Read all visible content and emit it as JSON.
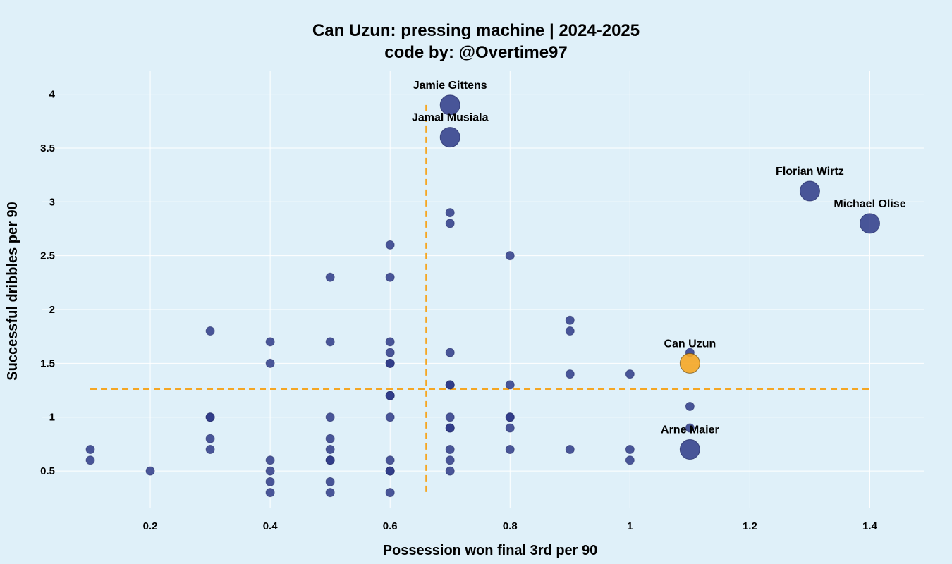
{
  "chart_data": {
    "type": "scatter",
    "title": "Can Uzun: pressing machine | 2024-2025",
    "subtitle": "code by: @Overtime97",
    "xlabel": "Possession won final 3rd per 90",
    "ylabel": "Successful dribbles per 90",
    "xlim": [
      0.02,
      1.49
    ],
    "ylim": [
      0.16,
      4.22
    ],
    "xticks": [
      "0.2",
      "0.4",
      "0.6",
      "0.8",
      "1",
      "1.2",
      "1.4"
    ],
    "yticks": [
      "0.5",
      "1",
      "1.5",
      "2",
      "2.5",
      "3",
      "3.5",
      "4"
    ],
    "grid": true,
    "reference_lines": {
      "x": 0.66,
      "y": 1.26
    },
    "colors": {
      "background": "#dff0f9",
      "point": "#2e3a87",
      "highlight": "#f5a623",
      "reference": "#f5a623"
    },
    "points": [
      {
        "x": 0.1,
        "y": 0.7
      },
      {
        "x": 0.1,
        "y": 0.6
      },
      {
        "x": 0.2,
        "y": 0.5
      },
      {
        "x": 0.3,
        "y": 1.8
      },
      {
        "x": 0.3,
        "y": 1.0
      },
      {
        "x": 0.3,
        "y": 1.0
      },
      {
        "x": 0.3,
        "y": 0.8
      },
      {
        "x": 0.3,
        "y": 0.7
      },
      {
        "x": 0.4,
        "y": 1.7
      },
      {
        "x": 0.4,
        "y": 1.5
      },
      {
        "x": 0.4,
        "y": 0.6
      },
      {
        "x": 0.4,
        "y": 0.5
      },
      {
        "x": 0.4,
        "y": 0.4
      },
      {
        "x": 0.4,
        "y": 0.3
      },
      {
        "x": 0.5,
        "y": 2.3
      },
      {
        "x": 0.5,
        "y": 1.7
      },
      {
        "x": 0.5,
        "y": 1.0
      },
      {
        "x": 0.5,
        "y": 0.8
      },
      {
        "x": 0.5,
        "y": 0.7
      },
      {
        "x": 0.5,
        "y": 0.6
      },
      {
        "x": 0.5,
        "y": 0.6
      },
      {
        "x": 0.5,
        "y": 0.4
      },
      {
        "x": 0.5,
        "y": 0.3
      },
      {
        "x": 0.6,
        "y": 2.6
      },
      {
        "x": 0.6,
        "y": 2.3
      },
      {
        "x": 0.6,
        "y": 1.7
      },
      {
        "x": 0.6,
        "y": 1.6
      },
      {
        "x": 0.6,
        "y": 1.5
      },
      {
        "x": 0.6,
        "y": 1.5
      },
      {
        "x": 0.6,
        "y": 1.2
      },
      {
        "x": 0.6,
        "y": 1.2
      },
      {
        "x": 0.6,
        "y": 1.0
      },
      {
        "x": 0.6,
        "y": 0.6
      },
      {
        "x": 0.6,
        "y": 0.5
      },
      {
        "x": 0.6,
        "y": 0.5
      },
      {
        "x": 0.6,
        "y": 0.3
      },
      {
        "x": 0.7,
        "y": 2.9
      },
      {
        "x": 0.7,
        "y": 2.8
      },
      {
        "x": 0.7,
        "y": 1.6
      },
      {
        "x": 0.7,
        "y": 1.3
      },
      {
        "x": 0.7,
        "y": 1.3
      },
      {
        "x": 0.7,
        "y": 1.0
      },
      {
        "x": 0.7,
        "y": 0.9
      },
      {
        "x": 0.7,
        "y": 0.9
      },
      {
        "x": 0.7,
        "y": 0.7
      },
      {
        "x": 0.7,
        "y": 0.6
      },
      {
        "x": 0.7,
        "y": 0.5
      },
      {
        "x": 0.8,
        "y": 2.5
      },
      {
        "x": 0.8,
        "y": 1.3
      },
      {
        "x": 0.8,
        "y": 1.0
      },
      {
        "x": 0.8,
        "y": 1.0
      },
      {
        "x": 0.8,
        "y": 0.9
      },
      {
        "x": 0.8,
        "y": 0.7
      },
      {
        "x": 0.9,
        "y": 1.9
      },
      {
        "x": 0.9,
        "y": 1.8
      },
      {
        "x": 0.9,
        "y": 1.4
      },
      {
        "x": 0.9,
        "y": 0.7
      },
      {
        "x": 1.0,
        "y": 1.4
      },
      {
        "x": 1.0,
        "y": 0.7
      },
      {
        "x": 1.0,
        "y": 0.6
      },
      {
        "x": 1.1,
        "y": 1.6
      },
      {
        "x": 1.1,
        "y": 1.1
      },
      {
        "x": 1.1,
        "y": 0.9
      }
    ],
    "labeled_points": [
      {
        "name": "Jamie Gittens",
        "x": 0.7,
        "y": 3.9,
        "highlight": false
      },
      {
        "name": "Jamal Musiala",
        "x": 0.7,
        "y": 3.6,
        "highlight": false
      },
      {
        "name": "Florian Wirtz",
        "x": 1.3,
        "y": 3.1,
        "highlight": false
      },
      {
        "name": "Michael Olise",
        "x": 1.4,
        "y": 2.8,
        "highlight": false
      },
      {
        "name": "Can Uzun",
        "x": 1.1,
        "y": 1.5,
        "highlight": true
      },
      {
        "name": "Arne Maier",
        "x": 1.1,
        "y": 0.7,
        "highlight": false
      }
    ]
  }
}
